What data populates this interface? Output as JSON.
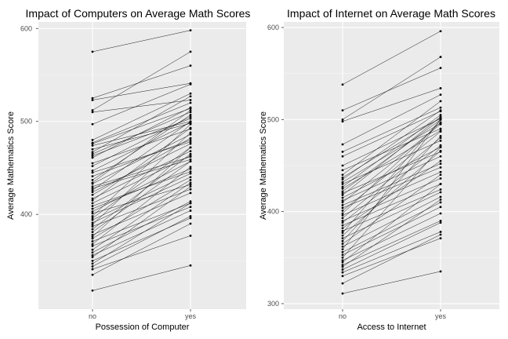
{
  "chart_data": [
    {
      "type": "line",
      "title": "Impact of Computers on Average Math Scores",
      "xlabel": "Possession of Computer",
      "ylabel": "Average Mathematics Score",
      "categories": [
        "no",
        "yes"
      ],
      "ylim": [
        298,
        607
      ],
      "yticks": [
        400,
        500,
        600
      ],
      "grid": true,
      "pairs": [
        [
          575,
          598
        ],
        [
          525,
          560
        ],
        [
          523,
          541
        ],
        [
          512,
          575
        ],
        [
          510,
          523
        ],
        [
          497,
          540
        ],
        [
          480,
          530
        ],
        [
          477,
          520
        ],
        [
          476,
          514
        ],
        [
          474,
          500
        ],
        [
          470,
          498
        ],
        [
          467,
          527
        ],
        [
          465,
          510
        ],
        [
          463,
          503
        ],
        [
          461,
          515
        ],
        [
          455,
          492
        ],
        [
          452,
          505
        ],
        [
          447,
          499
        ],
        [
          445,
          478
        ],
        [
          441,
          480
        ],
        [
          437,
          507
        ],
        [
          434,
          512
        ],
        [
          433,
          486
        ],
        [
          430,
          462
        ],
        [
          428,
          459
        ],
        [
          426,
          500
        ],
        [
          424,
          476
        ],
        [
          421,
          482
        ],
        [
          417,
          468
        ],
        [
          415,
          493
        ],
        [
          412,
          463
        ],
        [
          409,
          446
        ],
        [
          406,
          449
        ],
        [
          403,
          457
        ],
        [
          401,
          432
        ],
        [
          398,
          497
        ],
        [
          396,
          472
        ],
        [
          394,
          444
        ],
        [
          391,
          440
        ],
        [
          389,
          488
        ],
        [
          387,
          427
        ],
        [
          384,
          465
        ],
        [
          381,
          457
        ],
        [
          378,
          423
        ],
        [
          376,
          472
        ],
        [
          374,
          437
        ],
        [
          371,
          412
        ],
        [
          368,
          451
        ],
        [
          366,
          408
        ],
        [
          362,
          434
        ],
        [
          359,
          414
        ],
        [
          356,
          404
        ],
        [
          354,
          430
        ],
        [
          350,
          396
        ],
        [
          347,
          412
        ],
        [
          344,
          398
        ],
        [
          341,
          377
        ],
        [
          335,
          390
        ],
        [
          318,
          345
        ]
      ]
    },
    {
      "type": "line",
      "title": "Impact of Internet on Average Math Scores",
      "xlabel": "Access to Internet",
      "ylabel": "Average Mathematics Score",
      "categories": [
        "no",
        "yes"
      ],
      "ylim": [
        294,
        606
      ],
      "yticks": [
        300,
        400,
        500,
        600
      ],
      "grid": true,
      "pairs": [
        [
          538,
          596
        ],
        [
          510,
          556
        ],
        [
          500,
          568
        ],
        [
          498,
          534
        ],
        [
          473,
          527
        ],
        [
          465,
          513
        ],
        [
          460,
          509
        ],
        [
          450,
          501
        ],
        [
          445,
          490
        ],
        [
          440,
          520
        ],
        [
          437,
          502
        ],
        [
          435,
          510
        ],
        [
          432,
          496
        ],
        [
          430,
          477
        ],
        [
          427,
          505
        ],
        [
          425,
          488
        ],
        [
          422,
          500
        ],
        [
          420,
          465
        ],
        [
          418,
          503
        ],
        [
          415,
          470
        ],
        [
          412,
          460
        ],
        [
          410,
          495
        ],
        [
          407,
          452
        ],
        [
          404,
          448
        ],
        [
          401,
          487
        ],
        [
          398,
          497
        ],
        [
          396,
          443
        ],
        [
          393,
          480
        ],
        [
          390,
          436
        ],
        [
          388,
          472
        ],
        [
          385,
          430
        ],
        [
          382,
          455
        ],
        [
          379,
          424
        ],
        [
          377,
          500
        ],
        [
          374,
          466
        ],
        [
          371,
          421
        ],
        [
          368,
          482
        ],
        [
          365,
          440
        ],
        [
          362,
          416
        ],
        [
          359,
          500
        ],
        [
          356,
          410
        ],
        [
          353,
          405
        ],
        [
          350,
          470
        ],
        [
          347,
          398
        ],
        [
          345,
          430
        ],
        [
          342,
          390
        ],
        [
          340,
          413
        ],
        [
          337,
          388
        ],
        [
          334,
          378
        ],
        [
          330,
          371
        ],
        [
          322,
          375
        ],
        [
          311,
          335
        ]
      ]
    }
  ]
}
